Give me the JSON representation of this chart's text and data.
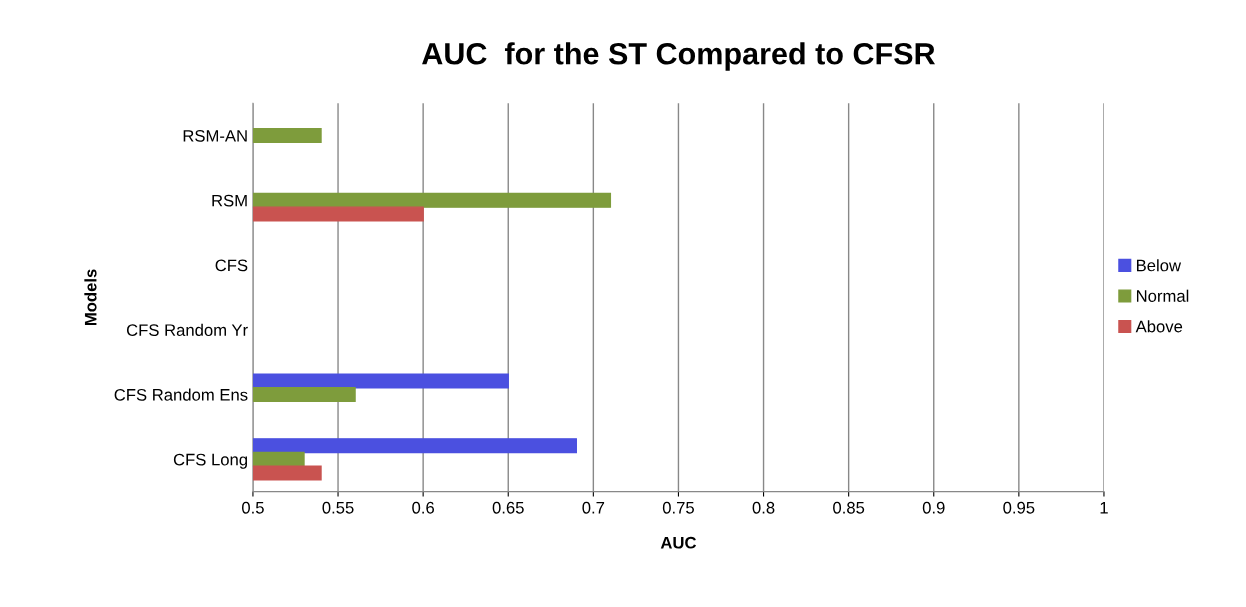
{
  "chart_data": {
    "type": "bar",
    "orientation": "horizontal",
    "title": "AUC  for the ST Compared to CFSR",
    "xlabel": "AUC",
    "ylabel": "Models",
    "categories": [
      "RSM-AN",
      "RSM",
      "CFS",
      "CFS Random Yr",
      "CFS Random Ens",
      "CFS Long"
    ],
    "series": [
      {
        "name": "Below",
        "color": "#4b50e0",
        "values": [
          null,
          null,
          null,
          null,
          0.65,
          0.69
        ]
      },
      {
        "name": "Normal",
        "color": "#7e9c3c",
        "values": [
          0.54,
          0.71,
          null,
          null,
          0.56,
          0.53
        ]
      },
      {
        "name": "Above",
        "color": "#c95350",
        "values": [
          null,
          0.6,
          null,
          null,
          null,
          0.54
        ]
      }
    ],
    "xlim": [
      0.5,
      1
    ],
    "xticks": [
      0.5,
      0.55,
      0.6,
      0.65,
      0.7,
      0.75,
      0.8,
      0.85,
      0.9,
      0.95,
      1
    ],
    "grid": "x",
    "legend": "right"
  }
}
